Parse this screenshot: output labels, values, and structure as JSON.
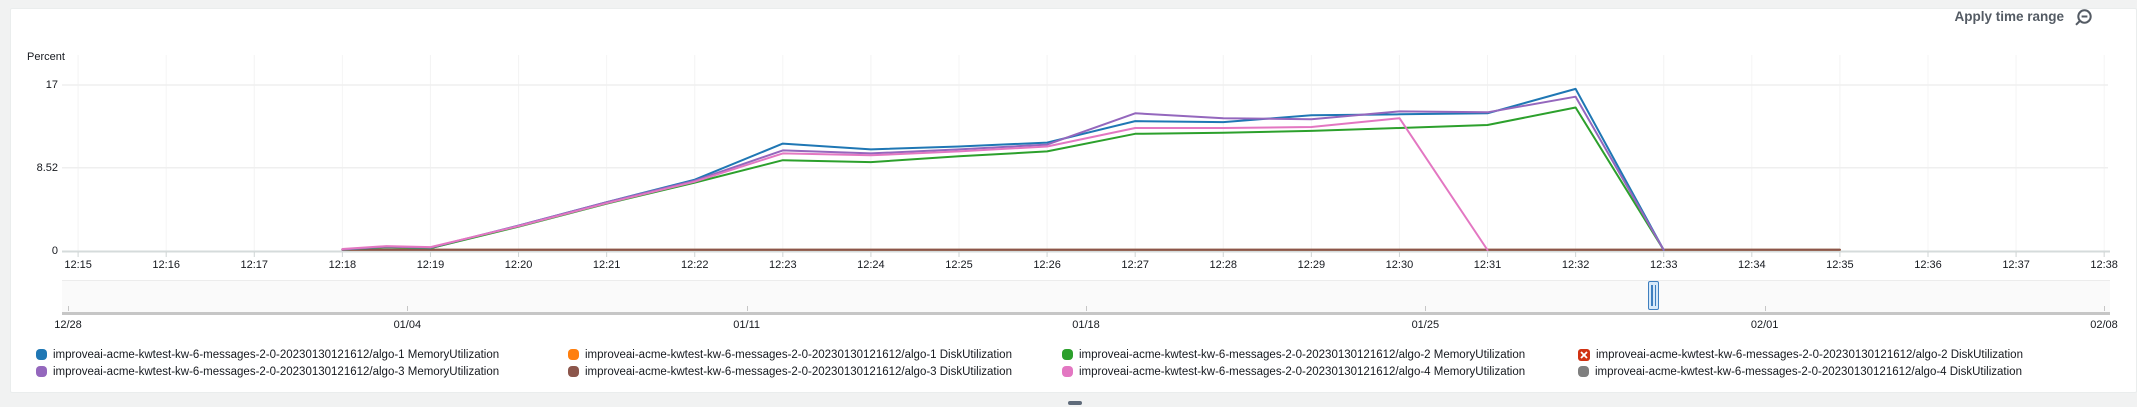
{
  "header": {
    "apply_label": "Apply time range",
    "zoom_out_icon": "magnifier-minus"
  },
  "chart_data": {
    "type": "line",
    "title": "",
    "ylabel": "Percent",
    "ylim": [
      0,
      17
    ],
    "grid": "horizontal",
    "legend_position": "bottom",
    "y_ticks": [
      {
        "value": 17,
        "label": "17"
      },
      {
        "value": 8.52,
        "label": "8.52"
      },
      {
        "value": 0,
        "label": "0"
      }
    ],
    "x_tick_labels": [
      "12:15",
      "12:16",
      "12:17",
      "12:18",
      "12:19",
      "12:20",
      "12:21",
      "12:22",
      "12:23",
      "12:24",
      "12:25",
      "12:26",
      "12:27",
      "12:28",
      "12:29",
      "12:30",
      "12:31",
      "12:32",
      "12:33",
      "12:34",
      "12:35",
      "12:36",
      "12:37",
      "12:38"
    ],
    "x_unit": "time of day (minutes)",
    "series": [
      {
        "name": "improveai-acme-kwtest-kw-6-messages-2-0-20230130121612/algo-1 DiskUtilization",
        "color": "#ff7f0e",
        "points": [
          [
            3,
            0.12
          ],
          [
            20,
            0.12
          ]
        ]
      },
      {
        "name": "improveai-acme-kwtest-kw-6-messages-2-0-20230130121612/algo-4 DiskUtilization",
        "color": "#7f7f7f",
        "points": [
          [
            3,
            0.12
          ],
          [
            20,
            0.12
          ]
        ]
      },
      {
        "name": "improveai-acme-kwtest-kw-6-messages-2-0-20230130121612/algo-3 DiskUtilization",
        "color": "#8c564b",
        "points": [
          [
            3,
            0.12
          ],
          [
            20,
            0.12
          ]
        ]
      },
      {
        "name": "improveai-acme-kwtest-kw-6-messages-2-0-20230130121612/algo-1 MemoryUtilization",
        "color": "#1f77b4",
        "points": [
          [
            3,
            0.15
          ],
          [
            3.5,
            0.4
          ],
          [
            4,
            0.3
          ],
          [
            5,
            2.6
          ],
          [
            6,
            5.0
          ],
          [
            7,
            7.3
          ],
          [
            8,
            11.0
          ],
          [
            9,
            10.4
          ],
          [
            10,
            10.7
          ],
          [
            11,
            11.1
          ],
          [
            12,
            13.3
          ],
          [
            13,
            13.2
          ],
          [
            14,
            13.9
          ],
          [
            15,
            14.0
          ],
          [
            16,
            14.1
          ],
          [
            17,
            16.6
          ],
          [
            18,
            0.1
          ]
        ]
      },
      {
        "name": "improveai-acme-kwtest-kw-6-messages-2-0-20230130121612/algo-2 MemoryUtilization",
        "color": "#2ca02c",
        "points": [
          [
            3,
            0.15
          ],
          [
            3.5,
            0.4
          ],
          [
            4,
            0.3
          ],
          [
            5,
            2.5
          ],
          [
            6,
            4.85
          ],
          [
            7,
            7.0
          ],
          [
            8,
            9.3
          ],
          [
            9,
            9.1
          ],
          [
            10,
            9.7
          ],
          [
            11,
            10.2
          ],
          [
            12,
            12.0
          ],
          [
            13,
            12.1
          ],
          [
            14,
            12.3
          ],
          [
            15,
            12.6
          ],
          [
            16,
            12.9
          ],
          [
            17,
            14.7
          ],
          [
            18,
            0.1
          ]
        ]
      },
      {
        "name": "improveai-acme-kwtest-kw-6-messages-2-0-20230130121612/algo-3 MemoryUtilization",
        "color": "#9467bd",
        "points": [
          [
            3,
            0.15
          ],
          [
            3.5,
            0.45
          ],
          [
            4,
            0.35
          ],
          [
            5,
            2.6
          ],
          [
            6,
            5.0
          ],
          [
            7,
            7.2
          ],
          [
            8,
            10.3
          ],
          [
            9,
            10.0
          ],
          [
            10,
            10.4
          ],
          [
            11,
            10.9
          ],
          [
            12,
            14.1
          ],
          [
            13,
            13.6
          ],
          [
            14,
            13.5
          ],
          [
            15,
            14.3
          ],
          [
            16,
            14.2
          ],
          [
            17,
            15.8
          ],
          [
            18,
            0.1
          ]
        ]
      },
      {
        "name": "improveai-acme-kwtest-kw-6-messages-2-0-20230130121612/algo-4 MemoryUtilization",
        "color": "#e377c2",
        "points": [
          [
            3,
            0.2
          ],
          [
            3.5,
            0.5
          ],
          [
            4,
            0.4
          ],
          [
            5,
            2.55
          ],
          [
            6,
            4.9
          ],
          [
            7,
            7.1
          ],
          [
            8,
            10.0
          ],
          [
            9,
            9.8
          ],
          [
            10,
            10.2
          ],
          [
            11,
            10.7
          ],
          [
            12,
            12.6
          ],
          [
            13,
            12.6
          ],
          [
            14,
            12.7
          ],
          [
            15,
            13.6
          ],
          [
            16,
            0.1
          ]
        ]
      }
    ]
  },
  "navigator": {
    "date_tick_labels": [
      "12/28",
      "01/04",
      "01/11",
      "01/18",
      "01/25",
      "02/01",
      "02/08"
    ],
    "selection": "handle near 01/30"
  },
  "legend": {
    "items": [
      {
        "label": "improveai-acme-kwtest-kw-6-messages-2-0-20230130121612/algo-1 MemoryUtilization",
        "color": "#1f77b4",
        "marker": "dot"
      },
      {
        "label": "improveai-acme-kwtest-kw-6-messages-2-0-20230130121612/algo-1 DiskUtilization",
        "color": "#ff7f0e",
        "marker": "dot"
      },
      {
        "label": "improveai-acme-kwtest-kw-6-messages-2-0-20230130121612/algo-2 MemoryUtilization",
        "color": "#2ca02c",
        "marker": "dot"
      },
      {
        "label": "improveai-acme-kwtest-kw-6-messages-2-0-20230130121612/algo-2 DiskUtilization",
        "color": "#d13212",
        "marker": "error-x"
      },
      {
        "label": "improveai-acme-kwtest-kw-6-messages-2-0-20230130121612/algo-3 MemoryUtilization",
        "color": "#9467bd",
        "marker": "dot"
      },
      {
        "label": "improveai-acme-kwtest-kw-6-messages-2-0-20230130121612/algo-3 DiskUtilization",
        "color": "#8c564b",
        "marker": "dot"
      },
      {
        "label": "improveai-acme-kwtest-kw-6-messages-2-0-20230130121612/algo-4 MemoryUtilization",
        "color": "#e377c2",
        "marker": "dot"
      },
      {
        "label": "improveai-acme-kwtest-kw-6-messages-2-0-20230130121612/algo-4 DiskUtilization",
        "color": "#7f7f7f",
        "marker": "dot"
      }
    ]
  }
}
